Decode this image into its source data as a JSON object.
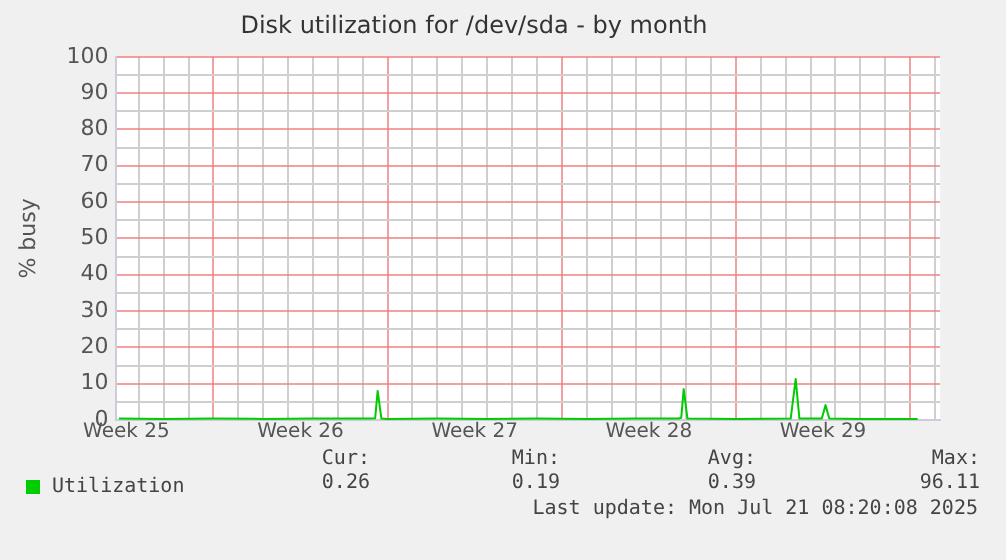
{
  "chart_data": {
    "type": "line",
    "title": "Disk utilization for /dev/sda - by month",
    "ylabel": "% busy",
    "xlim": [
      "2025-06-19T02:24",
      "2025-07-22T04:48"
    ],
    "ylim": [
      0,
      100
    ],
    "xticks": [
      {
        "value": "2025-06-19T12:00",
        "label": "Week 25"
      },
      {
        "value": "2025-06-26T12:00",
        "label": "Week 26"
      },
      {
        "value": "2025-07-03T12:00",
        "label": "Week 27"
      },
      {
        "value": "2025-07-10T12:00",
        "label": "Week 28"
      },
      {
        "value": "2025-07-17T12:00",
        "label": "Week 29"
      },
      {
        "value": "2025-06-20",
        "label": null
      },
      {
        "value": "2025-06-21",
        "label": null
      },
      {
        "value": "2025-06-22",
        "label": null
      },
      {
        "value": "2025-06-23",
        "label": null
      },
      {
        "value": "2025-06-24",
        "label": null
      },
      {
        "value": "2025-06-25",
        "label": null
      },
      {
        "value": "2025-06-26",
        "label": null
      },
      {
        "value": "2025-06-27",
        "label": null
      },
      {
        "value": "2025-06-28",
        "label": null
      },
      {
        "value": "2025-06-29",
        "label": null
      },
      {
        "value": "2025-06-30",
        "label": null
      },
      {
        "value": "2025-07-01",
        "label": null
      },
      {
        "value": "2025-07-02",
        "label": null
      },
      {
        "value": "2025-07-03",
        "label": null
      },
      {
        "value": "2025-07-04",
        "label": null
      },
      {
        "value": "2025-07-05",
        "label": null
      },
      {
        "value": "2025-07-06",
        "label": null
      },
      {
        "value": "2025-07-07",
        "label": null
      },
      {
        "value": "2025-07-08",
        "label": null
      },
      {
        "value": "2025-07-09",
        "label": null
      },
      {
        "value": "2025-07-10",
        "label": null
      },
      {
        "value": "2025-07-11",
        "label": null
      },
      {
        "value": "2025-07-12",
        "label": null
      },
      {
        "value": "2025-07-13",
        "label": null
      },
      {
        "value": "2025-07-14",
        "label": null
      },
      {
        "value": "2025-07-15",
        "label": null
      },
      {
        "value": "2025-07-16",
        "label": null
      },
      {
        "value": "2025-07-17",
        "label": null
      },
      {
        "value": "2025-07-18",
        "label": null
      },
      {
        "value": "2025-07-19",
        "label": null
      },
      {
        "value": "2025-07-20",
        "label": null
      },
      {
        "value": "2025-07-21",
        "label": null
      },
      {
        "value": "2025-07-22",
        "label": null
      }
    ],
    "yticks": [
      0,
      10,
      20,
      30,
      40,
      50,
      60,
      70,
      80,
      90,
      100,
      {
        "value": 5,
        "label": null
      },
      {
        "value": 15,
        "label": null
      },
      {
        "value": 25,
        "label": null
      },
      {
        "value": 35,
        "label": null
      },
      {
        "value": 45,
        "label": null
      },
      {
        "value": 55,
        "label": null
      },
      {
        "value": 65,
        "label": null
      },
      {
        "value": 75,
        "label": null
      },
      {
        "value": 85,
        "label": null
      },
      {
        "value": 95,
        "label": null
      }
    ],
    "grid": true,
    "legend": "bottom left",
    "marker": "none",
    "line_style": "solid",
    "x": [
      "2025-06-19T04:48",
      "2025-06-21",
      "2025-06-23",
      "2025-06-25",
      "2025-06-27",
      "2025-06-29T07:12",
      "2025-06-29T12:00",
      "2025-06-29T14:24",
      "2025-06-29T18:00",
      "2025-06-30",
      "2025-07-02",
      "2025-07-04",
      "2025-07-06",
      "2025-07-08",
      "2025-07-10",
      "2025-07-11T16:48",
      "2025-07-11T19:12",
      "2025-07-11T21:36",
      "2025-07-12T01:12",
      "2025-07-14",
      "2025-07-16T04:48",
      "2025-07-16T09:36",
      "2025-07-16T13:12",
      "2025-07-17T10:48",
      "2025-07-17T14:24",
      "2025-07-17T18:00",
      "2025-07-19",
      "2025-07-21T07:12"
    ],
    "series": [
      {
        "name": "Utilization",
        "color": "#00cc00",
        "values": [
          0.4,
          0.3,
          0.4,
          0.3,
          0.4,
          0.4,
          0.5,
          8.0,
          0.4,
          0.3,
          0.4,
          0.3,
          0.4,
          0.3,
          0.4,
          0.4,
          0.6,
          8.5,
          0.4,
          0.3,
          0.4,
          11.3,
          0.4,
          0.4,
          4.1,
          0.4,
          0.3,
          0.3
        ]
      }
    ],
    "annotations": [
      "Cur: 0.26",
      "Min: 0.19",
      "Avg: 0.39",
      "Max: 96.11",
      "Last update: Mon Jul 21 08:20:08 2025"
    ]
  }
}
